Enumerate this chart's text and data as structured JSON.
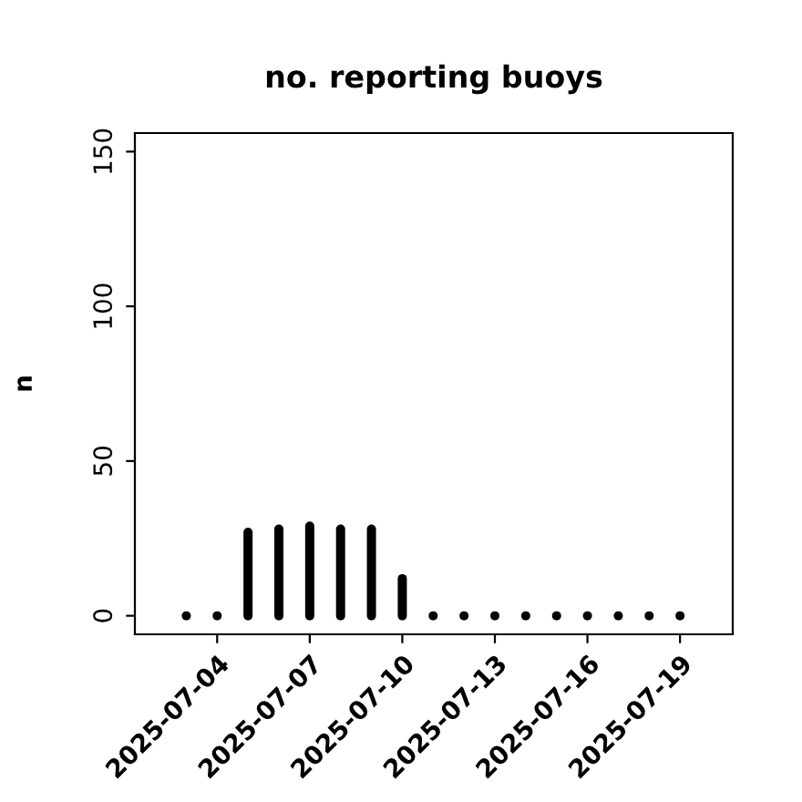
{
  "chart_data": {
    "type": "bar",
    "title": "no. reporting buoys",
    "ylabel": "n",
    "x": [
      "2025-07-03",
      "2025-07-04",
      "2025-07-05",
      "2025-07-06",
      "2025-07-07",
      "2025-07-08",
      "2025-07-09",
      "2025-07-10",
      "2025-07-11",
      "2025-07-12",
      "2025-07-13",
      "2025-07-14",
      "2025-07-15",
      "2025-07-16",
      "2025-07-17",
      "2025-07-18",
      "2025-07-19"
    ],
    "values": [
      0,
      0,
      27,
      28,
      29,
      28,
      28,
      12,
      0,
      0,
      0,
      0,
      0,
      0,
      0,
      0,
      0
    ],
    "color": "#000000",
    "xlim": [
      "2025-07-01T08:00",
      "2025-07-20T17:00"
    ],
    "xticks": [
      "2025-07-04",
      "2025-07-07",
      "2025-07-10",
      "2025-07-13",
      "2025-07-16",
      "2025-07-19"
    ],
    "ylim": [
      -6,
      156
    ],
    "yticks": [
      0,
      50,
      100,
      150
    ],
    "grid": false
  }
}
